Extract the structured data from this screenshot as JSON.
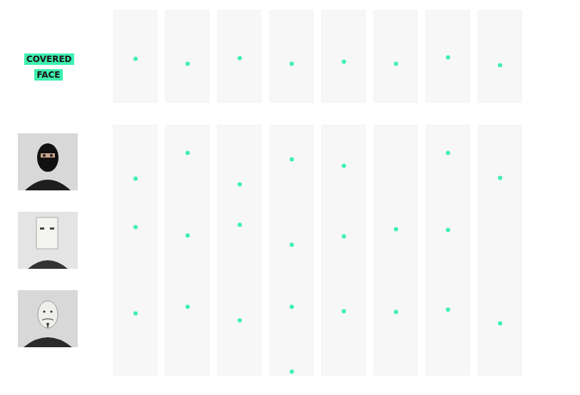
{
  "chart_data": [
    {
      "type": "strip",
      "title": "COVERED FACE",
      "categories": [
        null,
        null,
        null,
        null,
        null,
        null,
        null,
        null
      ],
      "values": [
        47.7,
        42.3,
        48.5,
        42.3,
        44.6,
        42.3,
        49.2,
        40.8
      ],
      "ylim": [
        0,
        100
      ],
      "color": "#3ef0b0",
      "tick_labels": false
    },
    {
      "type": "strip",
      "categories": [
        null,
        null,
        null,
        null,
        null,
        null,
        null,
        null
      ],
      "series": [
        {
          "values": [
            77.0,
            88.0,
            74.5,
            85.3,
            82.5,
            null,
            88.0,
            77.3
          ]
        },
        {
          "values": [
            56.1,
            52.5,
            57.1,
            48.5,
            52.1,
            55.2,
            54.9,
            null
          ]
        },
        {
          "values": [
            19.0,
            21.8,
            16.0,
            21.8,
            19.9,
            19.6,
            20.6,
            14.7
          ]
        },
        {
          "values": [
            null,
            null,
            null,
            -6.1,
            null,
            null,
            null,
            null
          ]
        }
      ],
      "ylim": [
        -8,
        100
      ],
      "color": "#3ef0b0",
      "tick_labels": false
    }
  ]
}
